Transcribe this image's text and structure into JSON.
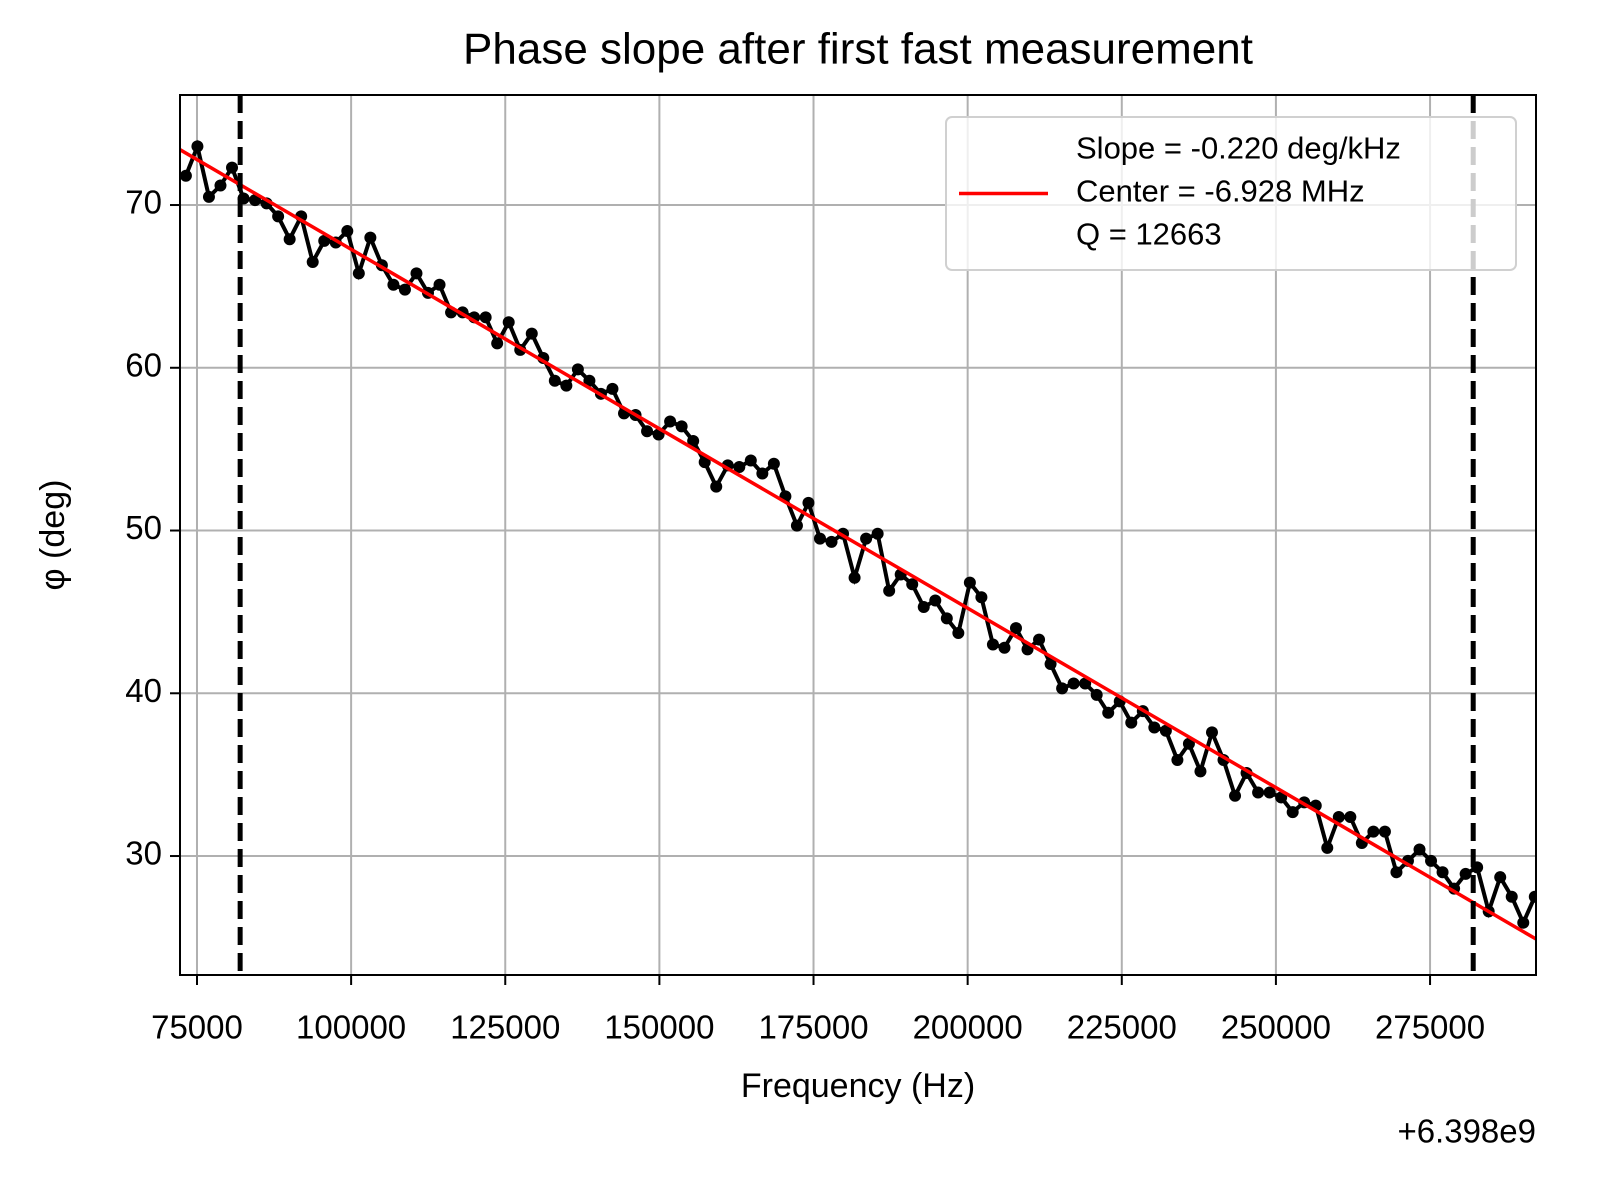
{
  "chart_data": {
    "type": "line",
    "title": "Phase slope after first fast measurement",
    "x_label": "Frequency (Hz)",
    "y_label": "φ (deg)",
    "x_offset_label": "+6.398e9",
    "xlim": [
      72244,
      292185
    ],
    "ylim": [
      22.69,
      76.76
    ],
    "xticks": [
      75000,
      100000,
      125000,
      150000,
      175000,
      200000,
      225000,
      250000,
      275000
    ],
    "yticks": [
      30,
      40,
      50,
      60,
      70
    ],
    "grid": true,
    "legend_position": "upper right",
    "vlines": [
      82000,
      282000
    ],
    "vline_color": "#000000",
    "series": [
      {
        "color": "#000000",
        "markers": true,
        "x": [
          73200,
          75070,
          76940,
          78810,
          80680,
          82550,
          84420,
          86290,
          88160,
          90030,
          91900,
          93770,
          95640,
          97510,
          99380,
          101250,
          103120,
          104990,
          106860,
          108730,
          110600,
          112470,
          114340,
          116210,
          118080,
          119950,
          121820,
          123690,
          125560,
          127430,
          129300,
          131170,
          133040,
          134910,
          136780,
          138650,
          140520,
          142390,
          144260,
          146130,
          148000,
          149870,
          151740,
          153610,
          155480,
          157350,
          159220,
          161090,
          162960,
          164830,
          166700,
          168570,
          170440,
          172310,
          174180,
          176050,
          177920,
          179790,
          181660,
          183530,
          185400,
          187270,
          189140,
          191010,
          192880,
          194750,
          196620,
          198490,
          200360,
          202230,
          204100,
          205970,
          207840,
          209710,
          211580,
          213450,
          215320,
          217190,
          219060,
          220930,
          222800,
          224670,
          226540,
          228410,
          230280,
          232150,
          234020,
          235890,
          237760,
          239630,
          241500,
          243370,
          245240,
          247110,
          248980,
          250850,
          252720,
          254590,
          256460,
          258330,
          260200,
          262070,
          263940,
          265810,
          267680,
          269550,
          271420,
          273290,
          275160,
          277030,
          278900,
          280770,
          282640,
          284510,
          286380,
          288250,
          290120,
          291990
        ],
        "values": [
          71.8,
          73.6,
          70.5,
          71.2,
          72.3,
          70.4,
          70.3,
          70.1,
          69.3,
          67.9,
          69.3,
          66.5,
          67.8,
          67.7,
          68.4,
          65.8,
          68.0,
          66.3,
          65.1,
          64.8,
          65.8,
          64.6,
          65.1,
          63.4,
          63.4,
          63.1,
          63.1,
          61.5,
          62.8,
          61.1,
          62.1,
          60.6,
          59.2,
          58.9,
          59.9,
          59.2,
          58.4,
          58.7,
          57.2,
          57.1,
          56.1,
          55.9,
          56.7,
          56.4,
          55.5,
          54.2,
          52.7,
          54.0,
          53.9,
          54.3,
          53.5,
          54.1,
          52.1,
          50.3,
          51.7,
          49.5,
          49.3,
          49.8,
          47.1,
          49.5,
          49.8,
          46.3,
          47.3,
          46.7,
          45.3,
          45.7,
          44.6,
          43.7,
          46.8,
          45.9,
          43.0,
          42.8,
          44.0,
          42.7,
          43.3,
          41.8,
          40.3,
          40.6,
          40.6,
          39.9,
          38.8,
          39.5,
          38.2,
          38.9,
          37.9,
          37.7,
          35.9,
          36.9,
          35.2,
          37.6,
          35.9,
          33.7,
          35.1,
          33.9,
          33.9,
          33.6,
          32.7,
          33.3,
          33.1,
          30.5,
          32.4,
          32.4,
          30.8,
          31.5,
          31.5,
          29.0,
          29.7,
          30.4,
          29.7,
          29.0,
          28.0,
          28.9,
          29.3,
          26.6,
          28.7,
          27.5,
          25.9,
          27.5
        ]
      },
      {
        "name": [
          "Slope = -0.220 deg/kHz",
          "Center = -6.928 MHz",
          "Q = 12663"
        ],
        "color": "#ff0000",
        "markers": false,
        "x": [
          72244,
          292185
        ],
        "values": [
          73.4,
          24.9
        ]
      }
    ]
  }
}
